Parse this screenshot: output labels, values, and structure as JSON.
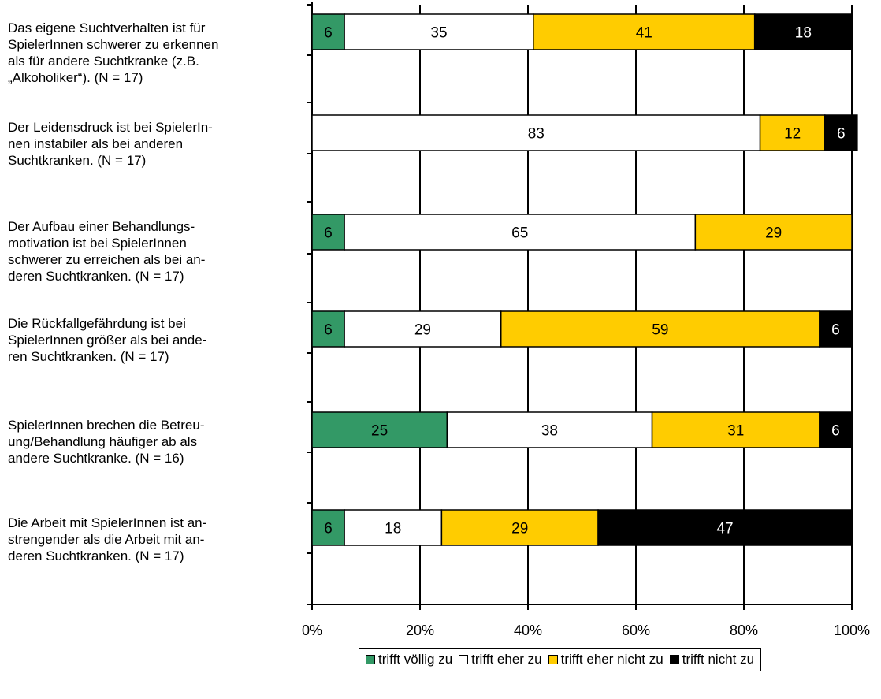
{
  "chart_data": {
    "type": "bar",
    "orientation": "horizontal",
    "stacked": true,
    "categories": [
      "Das eigene Suchtverhalten ist für SpielerInnen schwerer zu erkennen als für andere Suchtkranke (z.B. „Alkoholiker“). (N = 17)",
      "Der Leidensdruck ist bei SpielerIn-nen instabiler als bei anderen Suchtkranken. (N = 17)",
      "Der Aufbau einer Behandlungs-motivation ist bei SpielerInnen schwerer zu erreichen als bei an-deren Suchtkranken. (N = 17)",
      "Die Rückfallgefährdung ist bei SpielerInnen größer als bei ande-ren Suchtkranken. (N = 17)",
      "SpielerInnen brechen die Betreu-ung/Behandlung häufiger ab als andere Suchtkranke. (N = 16)",
      "Die Arbeit mit SpielerInnen ist an-strengender als die Arbeit mit an-deren Suchtkranken. (N = 17)"
    ],
    "category_lines": [
      [
        "Das eigene Suchtverhalten ist für",
        "SpielerInnen schwerer zu erkennen",
        "als für andere Suchtkranke (z.B.",
        "„Alkoholiker“). (N = 17)"
      ],
      [
        "Der Leidensdruck ist bei SpielerIn-",
        "nen instabiler als bei anderen",
        "Suchtkranken. (N = 17)"
      ],
      [
        "Der Aufbau einer Behandlungs-",
        "motivation ist bei SpielerInnen",
        "schwerer zu erreichen als bei an-",
        "deren Suchtkranken. (N = 17)"
      ],
      [
        "Die Rückfallgefährdung ist bei",
        "SpielerInnen größer als bei ande-",
        "ren Suchtkranken. (N = 17)"
      ],
      [
        "SpielerInnen brechen die Betreu-",
        "ung/Behandlung häufiger ab als",
        "andere Suchtkranke. (N = 16)"
      ],
      [
        "Die Arbeit mit SpielerInnen ist an-",
        "strengender als die Arbeit mit an-",
        "deren Suchtkranken. (N = 17)"
      ]
    ],
    "series": [
      {
        "name": "trifft völlig zu",
        "color": "#339966",
        "label_color": "#000000",
        "values": [
          6,
          0,
          6,
          6,
          25,
          6
        ]
      },
      {
        "name": "trifft eher zu",
        "color": "#ffffff",
        "label_color": "#000000",
        "values": [
          35,
          83,
          65,
          29,
          38,
          18
        ]
      },
      {
        "name": "trifft eher nicht zu",
        "color": "#ffcc00",
        "label_color": "#000000",
        "values": [
          41,
          12,
          29,
          59,
          31,
          29
        ]
      },
      {
        "name": "trifft nicht zu",
        "color": "#000000",
        "label_color": "#ffffff",
        "values": [
          18,
          6,
          0,
          6,
          6,
          47
        ]
      }
    ],
    "x_ticks": [
      "0%",
      "20%",
      "40%",
      "60%",
      "80%",
      "100%"
    ],
    "xlim": [
      0,
      100
    ],
    "grid": true,
    "legend_position": "bottom-right"
  }
}
